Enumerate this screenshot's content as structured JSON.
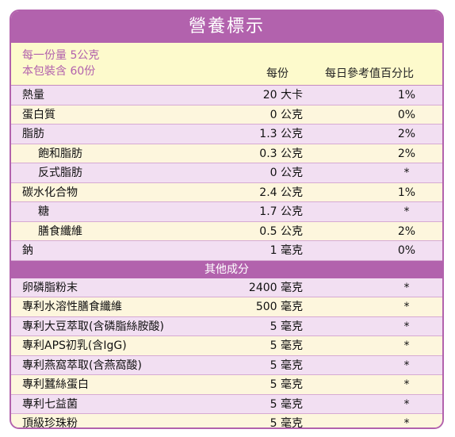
{
  "title": "營養標示",
  "serving_size": "每一份量 5公克",
  "servings_per_package": "本包裝含 60份",
  "col_per_serving": "每份",
  "col_daily_value": "每日參考值百分比",
  "nutrients": [
    {
      "name": "熱量",
      "amount": "20 大卡",
      "dv": "1%",
      "indent": false
    },
    {
      "name": "蛋白質",
      "amount": "0 公克",
      "dv": "0%",
      "indent": false
    },
    {
      "name": "脂肪",
      "amount": "1.3 公克",
      "dv": "2%",
      "indent": false
    },
    {
      "name": "飽和脂肪",
      "amount": "0.3 公克",
      "dv": "2%",
      "indent": true
    },
    {
      "name": "反式脂肪",
      "amount": "0 公克",
      "dv": "*",
      "indent": true
    },
    {
      "name": "碳水化合物",
      "amount": "2.4 公克",
      "dv": "1%",
      "indent": false
    },
    {
      "name": "糖",
      "amount": "1.7 公克",
      "dv": "*",
      "indent": true
    },
    {
      "name": "膳食纖維",
      "amount": "0.5 公克",
      "dv": "2%",
      "indent": true
    },
    {
      "name": "鈉",
      "amount": "1 毫克",
      "dv": "0%",
      "indent": false
    }
  ],
  "other_section_title": "其他成分",
  "other_ingredients": [
    {
      "name": "卵磷脂粉末",
      "amount": "2400 毫克",
      "dv": "*"
    },
    {
      "name": "專利水溶性膳食纖維",
      "amount": "500 毫克",
      "dv": "*"
    },
    {
      "name": "專利大豆萃取(含磷脂絲胺酸)",
      "amount": "5 毫克",
      "dv": "*"
    },
    {
      "name": "專利APS初乳(含IgG)",
      "amount": "5 毫克",
      "dv": "*"
    },
    {
      "name": "專利燕窩萃取(含燕窩酸)",
      "amount": "5 毫克",
      "dv": "*"
    },
    {
      "name": "專利蠶絲蛋白",
      "amount": "5 毫克",
      "dv": "*"
    },
    {
      "name": "專利七益菌",
      "amount": "5 毫克",
      "dv": "*"
    },
    {
      "name": "頂級珍珠粉",
      "amount": "5 毫克",
      "dv": "*"
    }
  ]
}
